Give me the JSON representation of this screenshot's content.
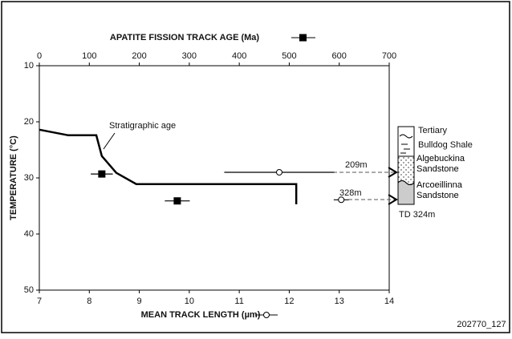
{
  "chart_data": {
    "type": "line",
    "x_title": "MEAN TRACK LENGTH (µm)",
    "x2_title": "APATITE FISSION TRACK AGE (Ma)",
    "y_title": "TEMPERATURE (°C)",
    "xlim": [
      7,
      14
    ],
    "xticks": [
      7,
      8,
      9,
      10,
      11,
      12,
      13,
      14
    ],
    "x2lim": [
      0,
      700
    ],
    "x2ticks": [
      0,
      100,
      200,
      300,
      400,
      500,
      600,
      700
    ],
    "ylim": [
      10,
      50
    ],
    "yticks": [
      10,
      20,
      30,
      40,
      50
    ],
    "y_reversed": true,
    "series": [
      {
        "color": "#000000",
        "x": [
          7,
          7.58,
          8.14,
          8.25,
          8.54,
          8.94,
          12.14,
          12.14
        ],
        "values": [
          21.4,
          22.4,
          22.4,
          26.1,
          29.1,
          31.1,
          31.1,
          34.7
        ]
      },
      {
        "color": "#000000",
        "marker": "filled-square",
        "axis": "x2",
        "x": [
          125,
          276
        ],
        "x_error": [
          22,
          25
        ],
        "values": [
          29.3,
          34.1
        ]
      },
      {
        "color": "#000000",
        "marker": "open-circle",
        "x": [
          11.8,
          13.04
        ],
        "x_error": [
          1.1,
          0.15
        ],
        "values": [
          29,
          33.9
        ]
      }
    ],
    "annotations": {
      "stratigraphic_age": "Stratigraphic age",
      "depth_1": "209m",
      "depth_2": "328m",
      "total_depth": "TD 324m"
    },
    "column_units": [
      "Tertiary",
      "Bulldog Shale",
      "Algebuckina Sandstone",
      "Arcoeillinna Sandstone"
    ],
    "figure_id": "202770_127"
  }
}
